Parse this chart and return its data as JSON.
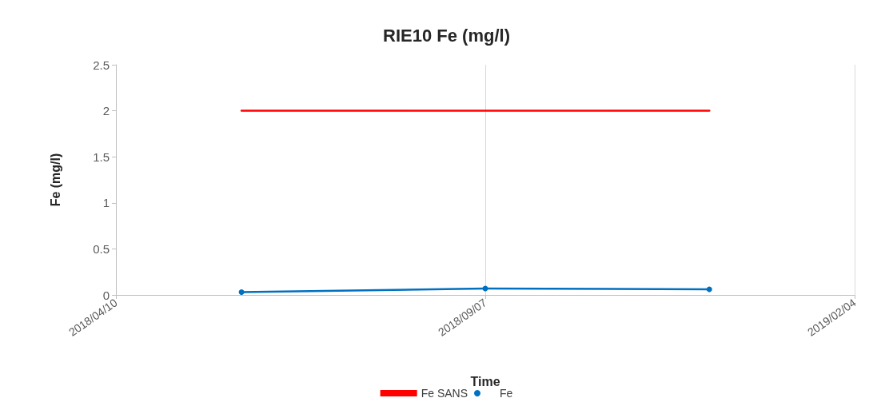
{
  "chart_data": {
    "type": "line",
    "title": "RIE10 Fe (mg/l)",
    "xlabel": "Time",
    "ylabel": "Fe (mg/l)",
    "series": [
      {
        "name": "Fe SANS",
        "color": "#ff0000",
        "x": [
          "2018-05-31",
          "2018-12-07"
        ],
        "values": [
          2,
          2
        ],
        "marker": "none"
      },
      {
        "name": "Fe",
        "color": "#0070c0",
        "x": [
          "2018-05-31",
          "2018-09-07",
          "2018-12-07"
        ],
        "values": [
          0.03,
          0.07,
          0.06
        ],
        "marker": "circle"
      }
    ],
    "xlim": [
      "2018-04-10",
      "2019-02-04"
    ],
    "xticks": [
      {
        "value": "2018-04-10",
        "label": "2018/04/10"
      },
      {
        "value": "2018-09-07",
        "label": "2018/09/07"
      },
      {
        "value": "2019-02-04",
        "label": "2019/02/04"
      }
    ],
    "ylim": [
      0,
      2.5
    ],
    "yticks": [
      0,
      0.5,
      1,
      1.5,
      2,
      2.5
    ],
    "grid": "x",
    "legend": "bottom",
    "line_style": "solid"
  }
}
